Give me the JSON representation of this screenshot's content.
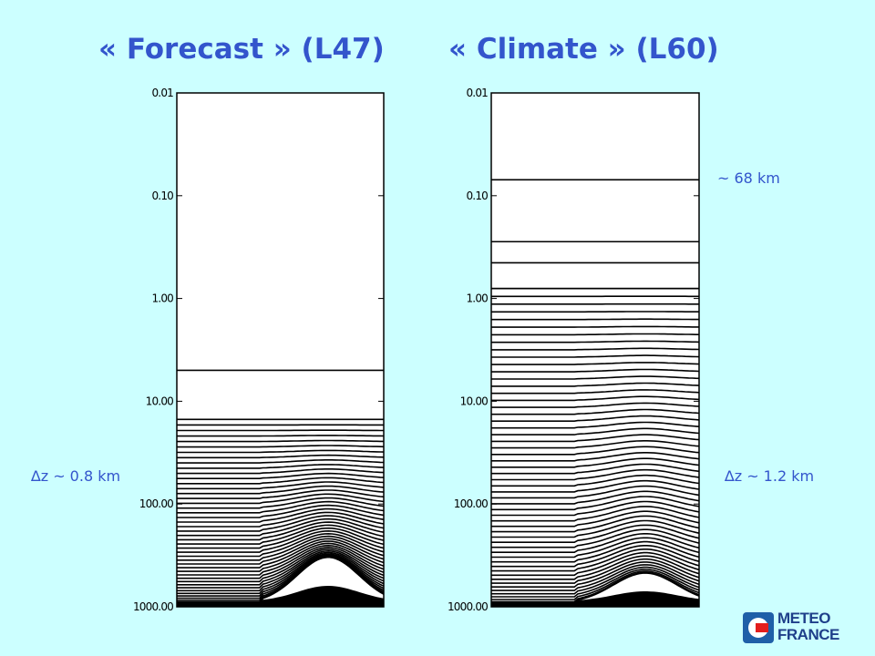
{
  "titles": {
    "left": "« Forecast » (L47)",
    "right": "« Climate » (L60)"
  },
  "annotations": {
    "dz_left": "∆z ~ 0.8 km",
    "dz_right": "∆z ~ 1.2 km",
    "top_right": "~ 68 km"
  },
  "logo": {
    "line1": "METEO",
    "line2": "FRANCE"
  },
  "diagram": {
    "pressure_axis": {
      "scale": "log",
      "range": [
        0.01,
        1000.0
      ],
      "tick_labels": [
        "0.01",
        "0.10",
        "1.00",
        "10.00",
        "100.00",
        "1000.00"
      ]
    },
    "panels": [
      {
        "id": "forecast",
        "levels": 47,
        "top_level_pressures": [
          0.01,
          5.0
        ],
        "dense_top_pressure": 15.0,
        "dense_lines": 45,
        "orography": "broad ridge in right half"
      },
      {
        "id": "climate",
        "levels": 60,
        "top_level_pressures": [
          0.01,
          0.07,
          0.28,
          0.45,
          0.8
        ],
        "dense_top_pressure": 0.8,
        "dense_lines": 55,
        "orography": "small ridge in right half near surface"
      }
    ]
  },
  "colors": {
    "background": "#ccffff",
    "title": "#3355cc",
    "annotation": "#3355cc"
  }
}
